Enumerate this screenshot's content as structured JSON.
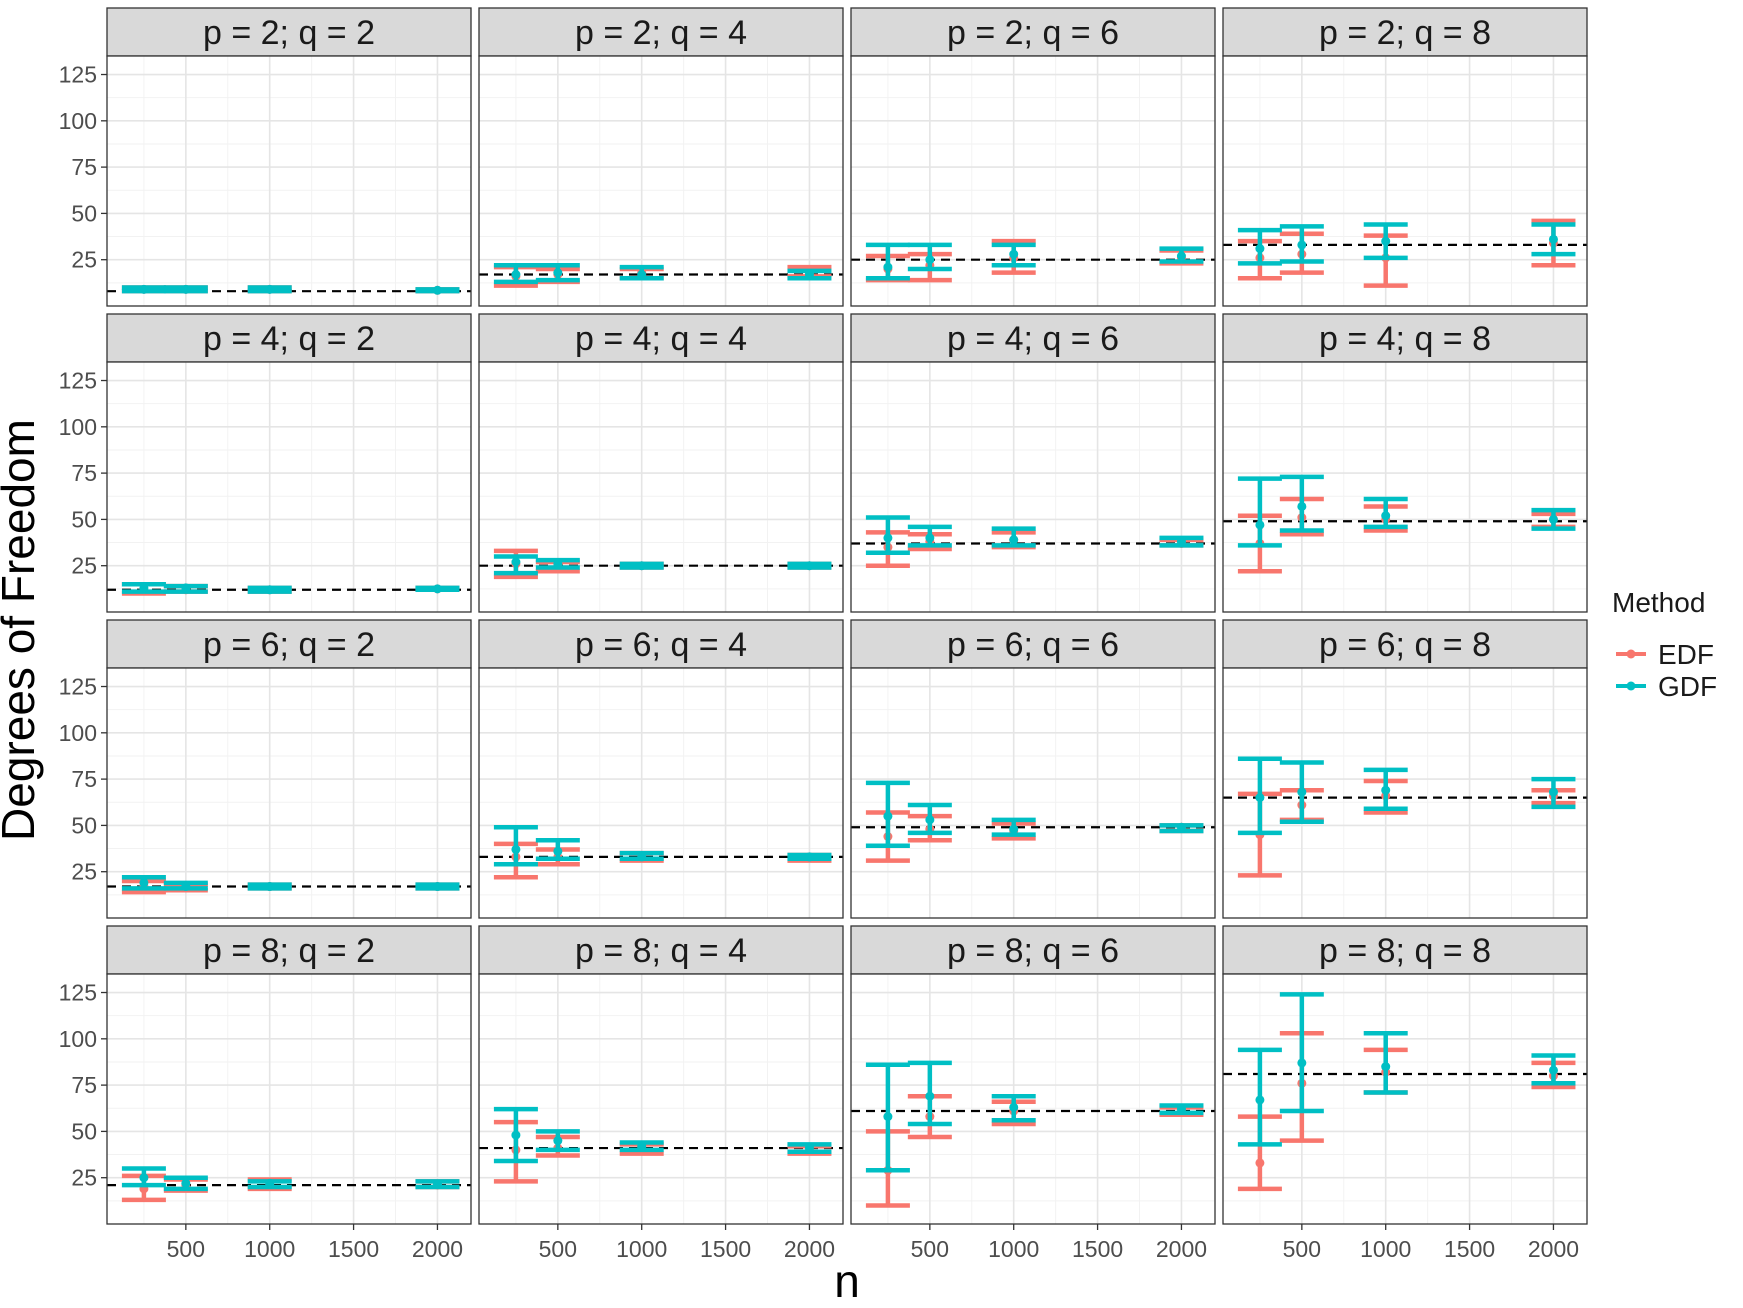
{
  "chart_data": {
    "type": "errorbar",
    "ylabel": "Degrees of Freedom",
    "xlabel": "n",
    "xlim": [
      30,
      2200
    ],
    "ylim": [
      0,
      135
    ],
    "x_ticks": [
      500,
      1000,
      1500,
      2000
    ],
    "y_ticks": [
      25,
      50,
      75,
      100,
      125
    ],
    "grid": true,
    "legend": {
      "title": "Method",
      "position": "right",
      "items": [
        {
          "name": "EDF",
          "color": "#F8766D"
        },
        {
          "name": "GDF",
          "color": "#00BFC4"
        }
      ]
    },
    "panels": [
      {
        "title": "p = 2; q = 2",
        "ref": 8,
        "points": [
          {
            "n": 250,
            "EDF": [
              8,
              9,
              10
            ],
            "GDF": [
              8,
              9,
              10
            ]
          },
          {
            "n": 500,
            "EDF": [
              8,
              9,
              10
            ],
            "GDF": [
              8,
              9,
              10
            ]
          },
          {
            "n": 1000,
            "EDF": [
              8,
              9,
              10
            ],
            "GDF": [
              8,
              9,
              10
            ]
          },
          {
            "n": 2000,
            "EDF": [
              8,
              8.5,
              9
            ],
            "GDF": [
              8,
              8.5,
              9
            ]
          }
        ]
      },
      {
        "title": "p = 2; q = 4",
        "ref": 17,
        "points": [
          {
            "n": 250,
            "EDF": [
              11,
              16,
              21
            ],
            "GDF": [
              13,
              17,
              22
            ]
          },
          {
            "n": 500,
            "EDF": [
              13,
              17,
              20
            ],
            "GDF": [
              14,
              18,
              22
            ]
          },
          {
            "n": 1000,
            "EDF": [
              15,
              18,
              20
            ],
            "GDF": [
              15,
              17,
              21
            ]
          },
          {
            "n": 2000,
            "EDF": [
              16,
              18,
              21
            ],
            "GDF": [
              15,
              17,
              19
            ]
          }
        ]
      },
      {
        "title": "p = 2; q = 6",
        "ref": 25,
        "points": [
          {
            "n": 250,
            "EDF": [
              14,
              20,
              27
            ],
            "GDF": [
              15,
              21,
              33
            ]
          },
          {
            "n": 500,
            "EDF": [
              14,
              22,
              28
            ],
            "GDF": [
              20,
              25,
              33
            ]
          },
          {
            "n": 1000,
            "EDF": [
              18,
              26,
              35
            ],
            "GDF": [
              22,
              28,
              33
            ]
          },
          {
            "n": 2000,
            "EDF": [
              23,
              26,
              30
            ],
            "GDF": [
              24,
              27,
              31
            ]
          }
        ]
      },
      {
        "title": "p = 2; q = 8",
        "ref": 33,
        "points": [
          {
            "n": 250,
            "EDF": [
              15,
              26,
              35
            ],
            "GDF": [
              23,
              31,
              41
            ]
          },
          {
            "n": 500,
            "EDF": [
              18,
              28,
              39
            ],
            "GDF": [
              24,
              33,
              43
            ]
          },
          {
            "n": 1000,
            "EDF": [
              11,
              26,
              38
            ],
            "GDF": [
              26,
              35,
              44
            ]
          },
          {
            "n": 2000,
            "EDF": [
              22,
              34,
              46
            ],
            "GDF": [
              28,
              36,
              44
            ]
          }
        ]
      },
      {
        "title": "p = 4; q = 2",
        "ref": 12,
        "points": [
          {
            "n": 250,
            "EDF": [
              10,
              12,
              15
            ],
            "GDF": [
              11,
              13,
              15
            ]
          },
          {
            "n": 500,
            "EDF": [
              11,
              12,
              14
            ],
            "GDF": [
              11,
              13,
              14
            ]
          },
          {
            "n": 1000,
            "EDF": [
              11,
              12,
              13
            ],
            "GDF": [
              11,
              12,
              13
            ]
          },
          {
            "n": 2000,
            "EDF": [
              12,
              12.5,
              13
            ],
            "GDF": [
              12,
              12.5,
              13
            ]
          }
        ]
      },
      {
        "title": "p = 4; q = 4",
        "ref": 25,
        "points": [
          {
            "n": 250,
            "EDF": [
              19,
              26,
              33
            ],
            "GDF": [
              21,
              27,
              30
            ]
          },
          {
            "n": 500,
            "EDF": [
              22,
              25,
              27
            ],
            "GDF": [
              24,
              26,
              28
            ]
          },
          {
            "n": 1000,
            "EDF": [
              24,
              25,
              26
            ],
            "GDF": [
              24,
              25,
              26
            ]
          },
          {
            "n": 2000,
            "EDF": [
              24,
              25,
              26
            ],
            "GDF": [
              24,
              25,
              26
            ]
          }
        ]
      },
      {
        "title": "p = 4; q = 6",
        "ref": 37,
        "points": [
          {
            "n": 250,
            "EDF": [
              25,
              35,
              43
            ],
            "GDF": [
              32,
              40,
              51
            ]
          },
          {
            "n": 500,
            "EDF": [
              34,
              38,
              42
            ],
            "GDF": [
              36,
              40,
              46
            ]
          },
          {
            "n": 1000,
            "EDF": [
              35,
              39,
              43
            ],
            "GDF": [
              36,
              39,
              45
            ]
          },
          {
            "n": 2000,
            "EDF": [
              36,
              37,
              39
            ],
            "GDF": [
              36,
              38,
              40
            ]
          }
        ]
      },
      {
        "title": "p = 4; q = 8",
        "ref": 49,
        "points": [
          {
            "n": 250,
            "EDF": [
              22,
              37,
              52
            ],
            "GDF": [
              36,
              47,
              72
            ]
          },
          {
            "n": 500,
            "EDF": [
              42,
              51,
              61
            ],
            "GDF": [
              44,
              57,
              73
            ]
          },
          {
            "n": 1000,
            "EDF": [
              44,
              50,
              57
            ],
            "GDF": [
              46,
              52,
              61
            ]
          },
          {
            "n": 2000,
            "EDF": [
              46,
              50,
              53
            ],
            "GDF": [
              45,
              50,
              55
            ]
          }
        ]
      },
      {
        "title": "p = 6; q = 2",
        "ref": 17,
        "points": [
          {
            "n": 250,
            "EDF": [
              14,
              17,
              20
            ],
            "GDF": [
              16,
              19,
              22
            ]
          },
          {
            "n": 500,
            "EDF": [
              15,
              17,
              18
            ],
            "GDF": [
              16,
              17,
              19
            ]
          },
          {
            "n": 1000,
            "EDF": [
              16,
              17,
              18
            ],
            "GDF": [
              16,
              17,
              18
            ]
          },
          {
            "n": 2000,
            "EDF": [
              16,
              17,
              18
            ],
            "GDF": [
              16,
              17,
              18
            ]
          }
        ]
      },
      {
        "title": "p = 6; q = 4",
        "ref": 33,
        "points": [
          {
            "n": 250,
            "EDF": [
              22,
              33,
              40
            ],
            "GDF": [
              29,
              37,
              49
            ]
          },
          {
            "n": 500,
            "EDF": [
              29,
              33,
              37
            ],
            "GDF": [
              32,
              36,
              42
            ]
          },
          {
            "n": 1000,
            "EDF": [
              31,
              33,
              35
            ],
            "GDF": [
              32,
              33,
              35
            ]
          },
          {
            "n": 2000,
            "EDF": [
              31,
              33,
              34
            ],
            "GDF": [
              32,
              33,
              34
            ]
          }
        ]
      },
      {
        "title": "p = 6; q = 6",
        "ref": 49,
        "points": [
          {
            "n": 250,
            "EDF": [
              31,
              44,
              57
            ],
            "GDF": [
              39,
              55,
              73
            ]
          },
          {
            "n": 500,
            "EDF": [
              42,
              48,
              55
            ],
            "GDF": [
              46,
              53,
              61
            ]
          },
          {
            "n": 1000,
            "EDF": [
              43,
              47,
              51
            ],
            "GDF": [
              45,
              48,
              53
            ]
          },
          {
            "n": 2000,
            "EDF": [
              47,
              49,
              50
            ],
            "GDF": [
              47,
              49,
              50
            ]
          }
        ]
      },
      {
        "title": "p = 6; q = 8",
        "ref": 65,
        "points": [
          {
            "n": 250,
            "EDF": [
              23,
              45,
              67
            ],
            "GDF": [
              46,
              65,
              86
            ]
          },
          {
            "n": 500,
            "EDF": [
              53,
              61,
              69
            ],
            "GDF": [
              52,
              68,
              84
            ]
          },
          {
            "n": 1000,
            "EDF": [
              57,
              66,
              74
            ],
            "GDF": [
              59,
              69,
              80
            ]
          },
          {
            "n": 2000,
            "EDF": [
              62,
              66,
              69
            ],
            "GDF": [
              60,
              68,
              75
            ]
          }
        ]
      },
      {
        "title": "p = 8; q = 2",
        "ref": 21,
        "points": [
          {
            "n": 250,
            "EDF": [
              13,
              19,
              26
            ],
            "GDF": [
              21,
              25,
              30
            ]
          },
          {
            "n": 500,
            "EDF": [
              18,
              21,
              24
            ],
            "GDF": [
              19,
              22,
              25
            ]
          },
          {
            "n": 1000,
            "EDF": [
              19,
              21,
              24
            ],
            "GDF": [
              20,
              22,
              23
            ]
          },
          {
            "n": 2000,
            "EDF": [
              20,
              21,
              23
            ],
            "GDF": [
              20,
              21.5,
              23
            ]
          }
        ]
      },
      {
        "title": "p = 8; q = 4",
        "ref": 41,
        "points": [
          {
            "n": 250,
            "EDF": [
              23,
              40,
              55
            ],
            "GDF": [
              34,
              48,
              62
            ]
          },
          {
            "n": 500,
            "EDF": [
              37,
              41,
              47
            ],
            "GDF": [
              40,
              45,
              50
            ]
          },
          {
            "n": 1000,
            "EDF": [
              38,
              41,
              43
            ],
            "GDF": [
              40,
              42,
              44
            ]
          },
          {
            "n": 2000,
            "EDF": [
              38,
              40,
              42
            ],
            "GDF": [
              39,
              41,
              43
            ]
          }
        ]
      },
      {
        "title": "p = 8; q = 6",
        "ref": 61,
        "points": [
          {
            "n": 250,
            "EDF": [
              10,
              29,
              50
            ],
            "GDF": [
              29,
              58,
              86
            ]
          },
          {
            "n": 500,
            "EDF": [
              47,
              58,
              69
            ],
            "GDF": [
              54,
              69,
              87
            ]
          },
          {
            "n": 1000,
            "EDF": [
              54,
              61,
              66
            ],
            "GDF": [
              56,
              63,
              69
            ]
          },
          {
            "n": 2000,
            "EDF": [
              59,
              61,
              63
            ],
            "GDF": [
              60,
              62,
              64
            ]
          }
        ]
      },
      {
        "title": "p = 8; q = 8",
        "ref": 81,
        "points": [
          {
            "n": 250,
            "EDF": [
              19,
              33,
              58
            ],
            "GDF": [
              43,
              67,
              94
            ]
          },
          {
            "n": 500,
            "EDF": [
              45,
              76,
              103
            ],
            "GDF": [
              61,
              87,
              124
            ]
          },
          {
            "n": 1000,
            "EDF": [
              71,
              82,
              94
            ],
            "GDF": [
              71,
              85,
              103
            ]
          },
          {
            "n": 2000,
            "EDF": [
              74,
              80,
              87
            ],
            "GDF": [
              76,
              83,
              91
            ]
          }
        ]
      }
    ]
  }
}
